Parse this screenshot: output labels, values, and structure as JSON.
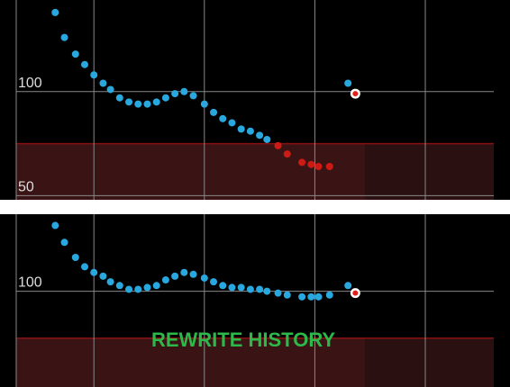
{
  "chart_data": [
    {
      "type": "scatter",
      "xlim": [
        -51,
        226
      ],
      "xticks": [
        0,
        60,
        120,
        180
      ],
      "ylim": [
        48,
        144
      ],
      "yticks": [
        50,
        100
      ],
      "grid": true,
      "low_threshold": 75,
      "color": "#29a8e0",
      "low_color": "#cc1a14",
      "x": [
        -21,
        -16,
        -10,
        -5,
        0,
        5,
        9,
        14,
        19,
        24,
        29,
        34,
        39,
        44,
        49,
        54,
        60,
        65,
        70,
        75,
        80,
        85,
        90,
        94,
        100,
        105,
        113,
        118,
        122,
        128,
        138
      ],
      "values": [
        138,
        126,
        118,
        113,
        108,
        104,
        101,
        97,
        95,
        94,
        94,
        95,
        97,
        99,
        100,
        98,
        94,
        90,
        87,
        85,
        82,
        81,
        79,
        77,
        74,
        70,
        66,
        65,
        64,
        64,
        104
      ],
      "calibrations": {
        "x": [
          142
        ],
        "values": [
          99
        ]
      }
    },
    {
      "type": "scatter",
      "xlim": [
        -51,
        226
      ],
      "xticks": [
        0,
        60,
        120,
        180
      ],
      "ylim": [
        49,
        141
      ],
      "yticks": [
        100
      ],
      "grid": true,
      "low_threshold": 75,
      "color": "#29a8e0",
      "low_color": "#cc1a14",
      "x": [
        -21,
        -16,
        -10,
        -5,
        0,
        5,
        9,
        14,
        19,
        24,
        29,
        34,
        39,
        44,
        49,
        54,
        60,
        65,
        70,
        75,
        80,
        85,
        90,
        94,
        100,
        105,
        113,
        118,
        122,
        128,
        138
      ],
      "values": [
        135,
        126,
        118,
        113,
        110,
        108,
        105,
        103,
        101,
        101,
        102,
        103,
        106,
        108,
        110,
        109,
        107,
        105,
        103,
        102,
        102,
        101,
        101,
        100,
        99,
        98,
        97,
        97,
        97,
        98,
        103
      ],
      "calibrations": {
        "x": [
          142
        ],
        "values": [
          99
        ]
      },
      "overlay_text": "REWRITE HISTORY"
    }
  ]
}
